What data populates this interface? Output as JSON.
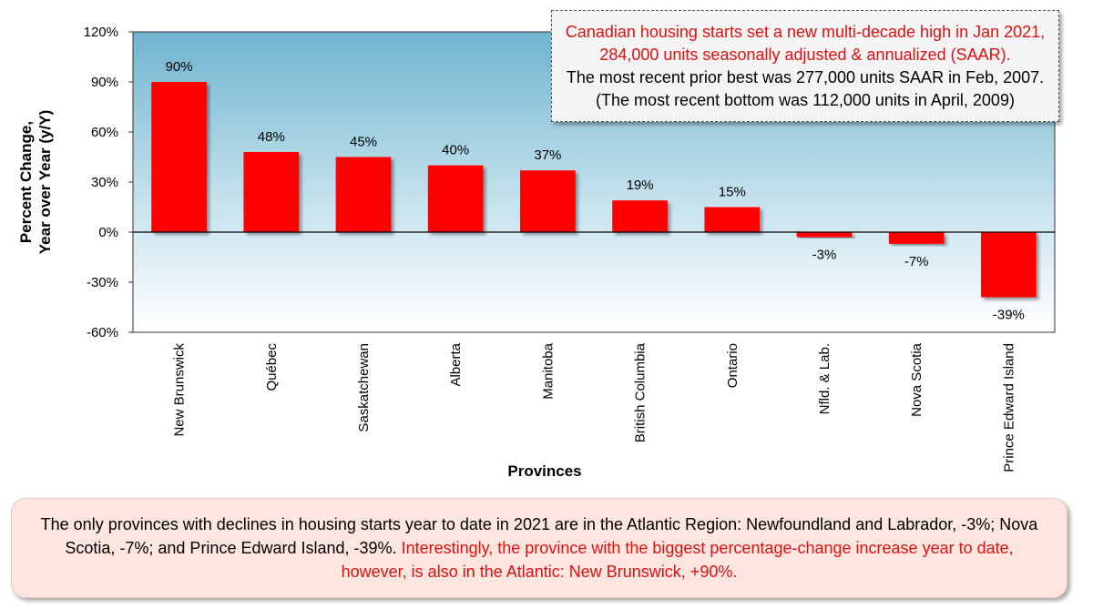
{
  "chart_data": {
    "type": "bar",
    "title": "",
    "xlabel": "Provinces",
    "ylabel_line1": "Percent Change,",
    "ylabel_line2": "Year over Year (y/Y)",
    "ylim": [
      -60,
      120
    ],
    "yticks": [
      -60,
      -30,
      0,
      30,
      60,
      90,
      120
    ],
    "ytick_labels": [
      "-60%",
      "-30%",
      "0%",
      "30%",
      "60%",
      "90%",
      "120%"
    ],
    "categories": [
      "New Brunswick",
      "Québec",
      "Saskatchewan",
      "Alberta",
      "Manitoba",
      "British Columbia",
      "Ontario",
      "Nfld. & Lab.",
      "Nova Scotia",
      "Prince Edward Island"
    ],
    "values": [
      90,
      48,
      45,
      40,
      37,
      19,
      15,
      -3,
      -7,
      -39
    ],
    "value_labels": [
      "90%",
      "48%",
      "45%",
      "40%",
      "37%",
      "19%",
      "15%",
      "-3%",
      "-7%",
      "-39%"
    ],
    "bar_color": "#ff0000",
    "plot_background": "gradient light blue",
    "grid": false,
    "legend": "none"
  },
  "annotation": {
    "line1_red": "Canadian housing starts set a new multi-decade high in Jan 2021,",
    "line2_red": "284,000 units seasonally adjusted & annualized (SAAR).",
    "line3": "The most recent prior best was 277,000 units SAAR in Feb, 2007.",
    "line4": "(The most recent bottom was 112,000 units in April, 2009)"
  },
  "footer": {
    "black_text": "The only provinces with declines in housing starts year to date in 2021 are in the Atlantic Region: Newfoundland and Labrador, -3%; Nova Scotia, -7%; and Prince Edward Island, -39%.",
    "red_text": "Interestingly, the province with the biggest percentage-change increase year to date, however, is also in the Atlantic: New Brunswick, +90%."
  }
}
